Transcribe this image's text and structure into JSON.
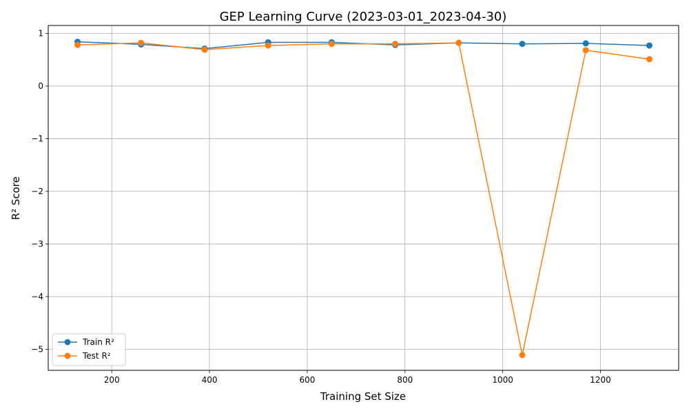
{
  "chart_data": {
    "type": "line",
    "title": "GEP Learning Curve (2023-03-01_2023-04-30)",
    "xlabel": "Training Set Size",
    "ylabel": "R² Score",
    "x": [
      130,
      260,
      390,
      520,
      650,
      780,
      910,
      1040,
      1170,
      1300
    ],
    "xlim": [
      70,
      1360
    ],
    "ylim": [
      -5.4,
      1.15
    ],
    "xticks": [
      200,
      400,
      600,
      800,
      1000,
      1200
    ],
    "yticks": [
      1,
      0,
      -1,
      -2,
      -3,
      -4,
      -5
    ],
    "ytick_labels": [
      "1",
      "0",
      "−1",
      "−2",
      "−3",
      "−4",
      "−5"
    ],
    "grid": true,
    "legend_position": "lower-left",
    "series": [
      {
        "name": "Train R²",
        "color": "#1f77b4",
        "marker": "circle",
        "values": [
          0.84,
          0.79,
          0.71,
          0.83,
          0.83,
          0.78,
          0.82,
          0.8,
          0.81,
          0.77
        ]
      },
      {
        "name": "Test R²",
        "color": "#ff7f0e",
        "marker": "circle",
        "values": [
          0.78,
          0.82,
          0.69,
          0.77,
          0.8,
          0.8,
          0.82,
          -5.11,
          0.68,
          0.51
        ]
      }
    ]
  }
}
